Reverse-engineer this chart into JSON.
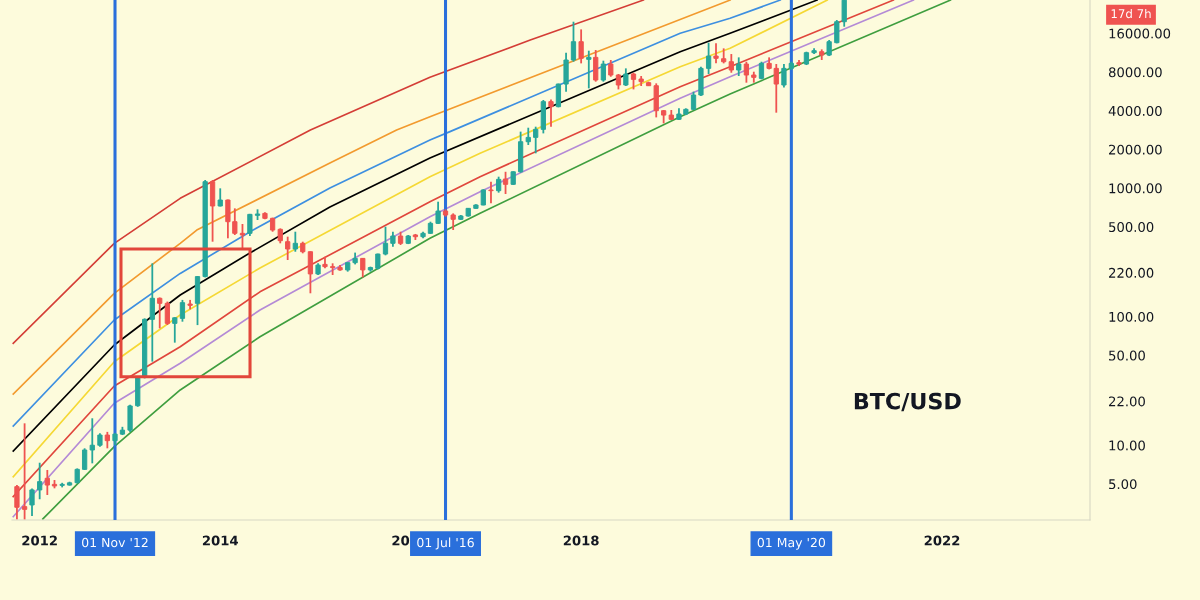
{
  "chart_data": {
    "type": "candlestick",
    "log": true,
    "x": [
      "2011-10",
      "2011-11",
      "2011-12",
      "2012-01",
      "2012-02",
      "2012-03",
      "2012-04",
      "2012-05",
      "2012-06",
      "2012-07",
      "2012-08",
      "2012-09",
      "2012-10",
      "2012-11",
      "2012-12",
      "2013-01",
      "2013-02",
      "2013-03",
      "2013-04",
      "2013-05",
      "2013-06",
      "2013-07",
      "2013-08",
      "2013-09",
      "2013-10",
      "2013-11",
      "2013-12",
      "2014-01",
      "2014-02",
      "2014-03",
      "2014-04",
      "2014-05",
      "2014-06",
      "2014-07",
      "2014-08",
      "2014-09",
      "2014-10",
      "2014-11",
      "2014-12",
      "2015-01",
      "2015-02",
      "2015-03",
      "2015-04",
      "2015-05",
      "2015-06",
      "2015-07",
      "2015-08",
      "2015-09",
      "2015-10",
      "2015-11",
      "2015-12",
      "2016-01",
      "2016-02",
      "2016-03",
      "2016-04",
      "2016-05",
      "2016-06",
      "2016-07",
      "2016-08",
      "2016-09",
      "2016-10",
      "2016-11",
      "2016-12",
      "2017-01",
      "2017-02",
      "2017-03",
      "2017-04",
      "2017-05",
      "2017-06",
      "2017-07",
      "2017-08",
      "2017-09",
      "2017-10",
      "2017-11",
      "2017-12",
      "2018-01",
      "2018-02",
      "2018-03",
      "2018-04",
      "2018-05",
      "2018-06",
      "2018-07",
      "2018-08",
      "2018-09",
      "2018-10",
      "2018-11",
      "2018-12",
      "2019-01",
      "2019-02",
      "2019-03",
      "2019-04",
      "2019-05",
      "2019-06",
      "2019-07",
      "2019-08",
      "2019-09",
      "2019-10",
      "2019-11",
      "2019-12",
      "2020-01",
      "2020-02",
      "2020-03",
      "2020-04",
      "2020-05",
      "2020-06",
      "2020-07",
      "2020-08",
      "2020-09",
      "2020-10",
      "2020-11",
      "2020-12"
    ],
    "ohlc": [
      [
        4.76,
        4.9,
        2.65,
        3.29
      ],
      [
        3.33,
        14.8,
        2.65,
        3.17
      ],
      [
        3.43,
        4.6,
        2.81,
        4.49
      ],
      [
        4.49,
        7.31,
        3.8,
        5.21
      ],
      [
        5.53,
        6.42,
        4.1,
        4.9
      ],
      [
        4.96,
        5.36,
        4.62,
        4.82
      ],
      [
        4.87,
        5.1,
        4.7,
        4.96
      ],
      [
        4.9,
        5.2,
        4.85,
        5.1
      ],
      [
        5.11,
        6.6,
        5.05,
        6.49
      ],
      [
        6.49,
        9.46,
        6.42,
        9.18
      ],
      [
        9.18,
        16.2,
        7.23,
        10.0
      ],
      [
        10.0,
        12.4,
        9.74,
        12.0
      ],
      [
        12.0,
        12.7,
        9.46,
        10.85
      ],
      [
        10.85,
        12.4,
        10.0,
        12.2
      ],
      [
        12.2,
        13.9,
        12.0,
        13.1
      ],
      [
        13.1,
        20.6,
        12.7,
        20.2
      ],
      [
        20.3,
        34.1,
        19.9,
        33.7
      ],
      [
        33.7,
        97,
        33.1,
        95.3
      ],
      [
        95.3,
        260,
        44.7,
        139
      ],
      [
        139,
        141,
        81.1,
        127
      ],
      [
        127,
        131,
        86.1,
        88.7
      ],
      [
        88.7,
        99,
        62.8,
        98
      ],
      [
        97,
        135,
        91.4,
        128.5
      ],
      [
        125.4,
        135,
        114,
        122.5
      ],
      [
        127,
        207,
        86,
        205
      ],
      [
        205,
        1156,
        202,
        1122
      ],
      [
        1122,
        1156,
        383,
        726
      ],
      [
        726,
        996,
        720,
        808
      ],
      [
        808,
        815,
        407,
        548
      ],
      [
        548,
        696,
        432,
        445
      ],
      [
        445,
        526,
        340,
        432
      ],
      [
        445,
        630,
        424,
        625
      ],
      [
        614,
        684,
        565,
        629
      ],
      [
        636,
        650,
        572,
        582
      ],
      [
        582,
        589,
        458,
        472
      ],
      [
        478,
        486,
        372,
        390
      ],
      [
        383,
        419,
        276,
        336
      ],
      [
        336,
        458,
        320,
        372
      ],
      [
        372,
        383,
        311,
        320
      ],
      [
        320,
        322,
        152,
        215
      ],
      [
        215,
        260,
        211,
        252
      ],
      [
        255,
        293,
        238,
        245
      ],
      [
        245,
        260,
        211,
        241
      ],
      [
        241,
        252,
        228,
        231
      ],
      [
        231,
        264,
        224,
        263
      ],
      [
        263,
        315,
        255,
        284
      ],
      [
        284,
        286,
        202,
        231
      ],
      [
        231,
        245,
        224,
        241
      ],
      [
        238,
        309,
        233,
        307
      ],
      [
        307,
        501,
        300,
        372
      ],
      [
        372,
        458,
        350,
        424
      ],
      [
        424,
        458,
        361,
        372
      ],
      [
        372,
        432,
        367,
        424
      ],
      [
        432,
        440,
        395,
        419
      ],
      [
        419,
        458,
        407,
        445
      ],
      [
        445,
        548,
        440,
        532
      ],
      [
        532,
        784,
        526,
        663
      ],
      [
        663,
        684,
        600,
        618
      ],
      [
        618,
        636,
        472,
        572
      ],
      [
        572,
        618,
        565,
        607
      ],
      [
        607,
        700,
        600,
        696
      ],
      [
        696,
        750,
        690,
        739
      ],
      [
        739,
        980,
        735,
        967
      ],
      [
        967,
        1122,
        761,
        955
      ],
      [
        955,
        1227,
        922,
        1170
      ],
      [
        1177,
        1340,
        900,
        1070
      ],
      [
        1070,
        1350,
        1060,
        1340
      ],
      [
        1340,
        2750,
        1318,
        2295
      ],
      [
        2295,
        2950,
        2165,
        2480
      ],
      [
        2480,
        3005,
        1865,
        2865
      ],
      [
        2865,
        4845,
        2665,
        4705
      ],
      [
        4705,
        4900,
        3005,
        4300
      ],
      [
        4300,
        6500,
        4250,
        6450
      ],
      [
        6450,
        11310,
        5625,
        9920
      ],
      [
        9920,
        19700,
        9620,
        13770
      ],
      [
        13770,
        17170,
        9340,
        10220
      ],
      [
        10040,
        11720,
        5970,
        10400
      ],
      [
        10400,
        11860,
        6730,
        6930
      ],
      [
        6930,
        9800,
        6730,
        9230
      ],
      [
        9230,
        9920,
        7355,
        7580
      ],
      [
        7580,
        7720,
        5860,
        6340
      ],
      [
        6340,
        8540,
        6225,
        7720
      ],
      [
        7720,
        7900,
        5860,
        7015
      ],
      [
        7055,
        7445,
        6225,
        6730
      ],
      [
        6610,
        6730,
        6225,
        6260
      ],
      [
        6260,
        6530,
        3550,
        4000
      ],
      [
        4000,
        4050,
        3190,
        3700
      ],
      [
        3700,
        4050,
        3385,
        3430
      ],
      [
        3430,
        4175,
        3385,
        3770
      ],
      [
        3770,
        4175,
        3700,
        4100
      ],
      [
        4100,
        5625,
        4050,
        5300
      ],
      [
        5300,
        8800,
        5200,
        8540
      ],
      [
        8540,
        13530,
        7720,
        10650
      ],
      [
        10650,
        13370,
        9340,
        10220
      ],
      [
        10150,
        12220,
        9340,
        9620
      ],
      [
        9620,
        11040,
        7900,
        8290
      ],
      [
        8290,
        10400,
        7445,
        9230
      ],
      [
        9230,
        9620,
        6610,
        7580
      ],
      [
        7580,
        8045,
        6610,
        7270
      ],
      [
        7140,
        9620,
        7015,
        9340
      ],
      [
        9340,
        10400,
        8385,
        8540
      ],
      [
        8540,
        9230,
        3862,
        6450
      ],
      [
        6340,
        9230,
        6075,
        8540
      ],
      [
        8540,
        9620,
        8290,
        9340
      ],
      [
        9450,
        9920,
        8905,
        9230
      ],
      [
        9230,
        11510,
        9065,
        11310
      ],
      [
        11310,
        12220,
        11040,
        11720
      ],
      [
        11510,
        12000,
        9920,
        10840
      ],
      [
        10840,
        14190,
        10650,
        13770
      ],
      [
        13530,
        20300,
        13370,
        19700
      ],
      [
        19700,
        29060,
        18020,
        29000
      ]
    ],
    "colors": [
      "#ef5350",
      "#ef5350",
      "#26a69a",
      "#26a69a",
      "#ef5350",
      "#ef5350",
      "#26a69a",
      "#26a69a",
      "#26a69a",
      "#26a69a",
      "#26a69a",
      "#26a69a",
      "#ef5350",
      "#26a69a",
      "#26a69a",
      "#26a69a",
      "#26a69a",
      "#26a69a",
      "#26a69a",
      "#ef5350",
      "#ef5350",
      "#26a69a",
      "#26a69a",
      "#ef5350",
      "#26a69a",
      "#26a69a",
      "#ef5350",
      "#26a69a",
      "#ef5350",
      "#ef5350",
      "#ef5350",
      "#26a69a",
      "#26a69a",
      "#ef5350",
      "#ef5350",
      "#ef5350",
      "#ef5350",
      "#26a69a",
      "#ef5350",
      "#ef5350",
      "#26a69a",
      "#ef5350",
      "#ef5350",
      "#ef5350",
      "#26a69a",
      "#26a69a",
      "#ef5350",
      "#26a69a",
      "#26a69a",
      "#26a69a",
      "#26a69a",
      "#ef5350",
      "#26a69a",
      "#ef5350",
      "#26a69a",
      "#26a69a",
      "#26a69a",
      "#ef5350",
      "#ef5350",
      "#26a69a",
      "#26a69a",
      "#26a69a",
      "#26a69a",
      "#ef5350",
      "#26a69a",
      "#ef5350",
      "#26a69a",
      "#26a69a",
      "#26a69a",
      "#26a69a",
      "#26a69a",
      "#ef5350",
      "#26a69a",
      "#26a69a",
      "#26a69a",
      "#ef5350",
      "#26a69a",
      "#ef5350",
      "#26a69a",
      "#ef5350",
      "#ef5350",
      "#26a69a",
      "#ef5350",
      "#ef5350",
      "#ef5350",
      "#ef5350",
      "#ef5350",
      "#ef5350",
      "#26a69a",
      "#26a69a",
      "#26a69a",
      "#26a69a",
      "#26a69a",
      "#ef5350",
      "#ef5350",
      "#ef5350",
      "#26a69a",
      "#ef5350",
      "#ef5350",
      "#26a69a",
      "#ef5350",
      "#ef5350",
      "#26a69a",
      "#26a69a",
      "#ef5350",
      "#26a69a",
      "#26a69a",
      "#ef5350",
      "#26a69a",
      "#26a69a",
      "#26a69a"
    ],
    "series": [
      {
        "type": "line",
        "color": "#d43d36",
        "x": [
          "2011-09-16",
          "2012-10-29",
          "2013-07-23",
          "2015-01-01",
          "2016-04-29",
          "2017-06-09",
          "2018-09-10"
        ],
        "values": [
          62.1,
          372,
          833,
          2830,
          7275,
          14200,
          29000
        ]
      },
      {
        "type": "line",
        "color": "#f29a2e",
        "x": [
          "2011-09-16",
          "2012-10-29",
          "2013-07-23",
          "2013-09-28",
          "2015-03-21",
          "2015-12-16",
          "2016-04-29",
          "2019-08-27"
        ],
        "values": [
          25.0,
          152,
          372,
          472,
          1568,
          2830,
          3593,
          29000
        ]
      },
      {
        "type": "line",
        "color": "#3d8fe0",
        "x": [
          "2011-09-16",
          "2012-10-29",
          "2013-07-23",
          "2014-05-14",
          "2015-03-21",
          "2016-04-29",
          "2016-07-19",
          "2019-02-06",
          "2019-08-27",
          "2020-03-17"
        ],
        "values": [
          14.1,
          94.2,
          217,
          472,
          1002,
          2367,
          2751,
          16000,
          20940,
          29000
        ]
      },
      {
        "type": "line",
        "color": "#000000",
        "x": [
          "2011-09-16",
          "2012-10-29",
          "2013-07-23",
          "2014-05-01",
          "2015-03-21",
          "2016-04-29",
          "2019-02-06",
          "2019-08-27",
          "2020-08-13"
        ],
        "values": [
          9.02,
          60.2,
          147.5,
          313,
          713,
          1715,
          11510,
          16000,
          29000
        ]
      },
      {
        "type": "line",
        "color": "#f5d834",
        "x": [
          "2011-09-16",
          "2012-10-29",
          "2013-07-23",
          "2014-06-11",
          "2016-04-29",
          "2016-11-18",
          "2019-02-06",
          "2019-08-27",
          "2020-09-23"
        ],
        "values": [
          5.69,
          44.6,
          103,
          239,
          1227,
          1865,
          8797,
          12230,
          29000
        ]
      },
      {
        "type": "line",
        "color": "#e0463c",
        "x": [
          "2011-09-16",
          "2012-10-29",
          "2013-07-23",
          "2014-06-11",
          "2016-04-29",
          "2016-11-18",
          "2019-02-06",
          "2019-08-27",
          "2021-06-18"
        ],
        "values": [
          3.98,
          28.9,
          58.4,
          156,
          784,
          1227,
          6148,
          8797,
          29000
        ]
      },
      {
        "type": "line",
        "color": "#b48ad6",
        "x": [
          "2011-09-16",
          "2012-10-29",
          "2013-07-23",
          "2014-06-11",
          "2016-04-29",
          "2016-11-18",
          "2019-02-06",
          "2019-08-27",
          "2021-09-07"
        ],
        "values": [
          2.78,
          21.2,
          43.4,
          112.7,
          599,
          938,
          4994,
          7355,
          29000
        ]
      },
      {
        "type": "line",
        "color": "#3f9e3f",
        "x": [
          "2012-01-14",
          "2012-10-29",
          "2013-07-23",
          "2014-06-11",
          "2016-04-29",
          "2016-11-18",
          "2019-02-06",
          "2019-08-27",
          "2022-02-04"
        ],
        "values": [
          2.67,
          9.74,
          26.9,
          69.8,
          407,
          637,
          3593,
          5398,
          29000
        ]
      }
    ],
    "xlim": [
      "2011-09-11",
      "2023-08-23"
    ],
    "xticks": [
      {
        "value": "2012-01-01",
        "label": "2012"
      },
      {
        "value": "2014-01-01",
        "label": "2014"
      },
      {
        "value": "2016-01-01",
        "label": "20"
      },
      {
        "value": "2018-01-01",
        "label": "2018"
      },
      {
        "value": "2022-01-01",
        "label": "2022"
      }
    ],
    "ylim": [
      2.62,
      29060
    ],
    "yticks": [
      {
        "value": 5,
        "label": "5.00"
      },
      {
        "value": 10,
        "label": "10.00"
      },
      {
        "value": 22,
        "label": "22.00"
      },
      {
        "value": 50,
        "label": "50.00"
      },
      {
        "value": 100,
        "label": "100.00"
      },
      {
        "value": 220,
        "label": "220.00"
      },
      {
        "value": 500,
        "label": "500.00"
      },
      {
        "value": 1000,
        "label": "1000.00"
      },
      {
        "value": 2000,
        "label": "2000.00"
      },
      {
        "value": 4000,
        "label": "4000.00"
      },
      {
        "value": 8000,
        "label": "8000.00"
      },
      {
        "value": 16000,
        "label": "16000.00"
      }
    ],
    "ref_lines": [
      {
        "axis": "x",
        "value": "2012-11-01",
        "label": "01 Nov '12",
        "color": "#2a6fdb"
      },
      {
        "axis": "x",
        "value": "2016-07-01",
        "label": "01 Jul '16",
        "color": "#2a6fdb"
      },
      {
        "axis": "x",
        "value": "2020-05-01",
        "label": "01 May '20",
        "color": "#2a6fdb"
      }
    ],
    "annotations": [
      "BTC/USD",
      "17d 7h"
    ]
  }
}
